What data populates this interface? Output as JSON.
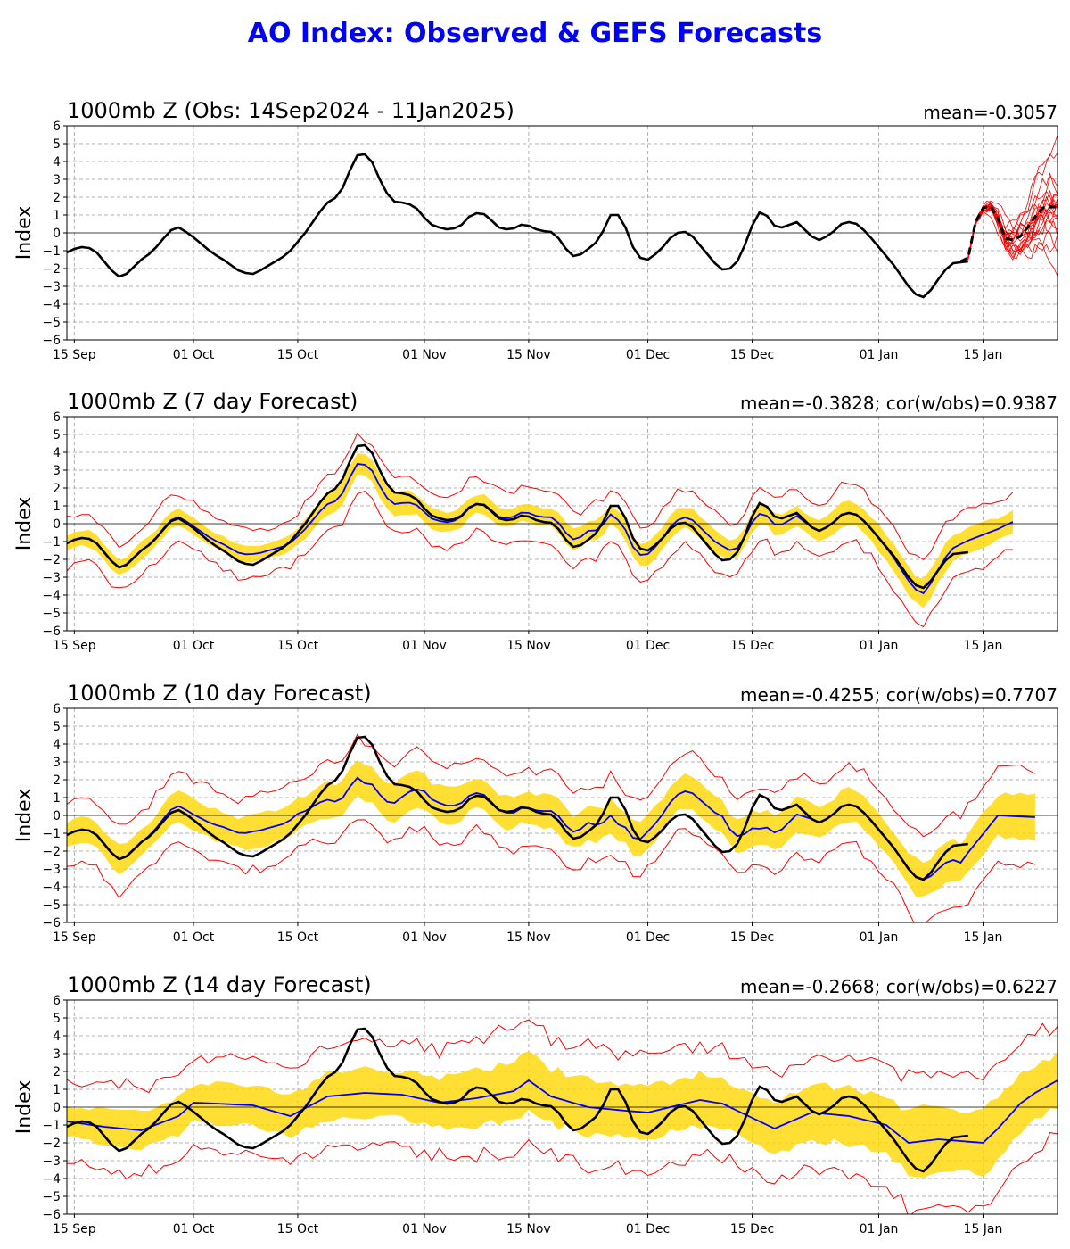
{
  "title": "AO Index: Observed & GEFS Forecasts",
  "colors": {
    "title": "#0000ff",
    "observed": "#000000",
    "ensemble_mean": "#0000ff",
    "members": "#ff0000",
    "spread": "#ffd700"
  },
  "chart_data": [
    {
      "type": "line",
      "title": "1000mb Z (Obs: 14Sep2024 - 11Jan2025)",
      "stats": "mean=-0.3057",
      "ylabel": "Index",
      "ylim": [
        -6,
        6
      ],
      "yticks": [
        "6",
        "5",
        "4",
        "3",
        "2",
        "1",
        "0",
        "−1",
        "−2",
        "−3",
        "−4",
        "−5",
        "−6"
      ],
      "xticks": [
        {
          "day": 1,
          "label": "15 Sep"
        },
        {
          "day": 17,
          "label": "01 Oct"
        },
        {
          "day": 31,
          "label": "15 Oct"
        },
        {
          "day": 48,
          "label": "01 Nov"
        },
        {
          "day": 62,
          "label": "15 Nov"
        },
        {
          "day": 78,
          "label": "01 Dec"
        },
        {
          "day": 92,
          "label": "15 Dec"
        },
        {
          "day": 109,
          "label": "01 Jan"
        },
        {
          "day": 123,
          "label": "15 Jan"
        }
      ],
      "x_start": "14Sep2024",
      "x_range_days": [
        0,
        133
      ],
      "grid": true,
      "observed_keypoints": [
        [
          0,
          -1.1
        ],
        [
          1,
          -0.9
        ],
        [
          2,
          -0.8
        ],
        [
          3,
          -0.85
        ],
        [
          4,
          -1.1
        ],
        [
          5,
          -1.6
        ],
        [
          6,
          -2.1
        ],
        [
          7,
          -2.45
        ],
        [
          8,
          -2.3
        ],
        [
          9,
          -1.9
        ],
        [
          10,
          -1.5
        ],
        [
          11,
          -1.2
        ],
        [
          12,
          -0.8
        ],
        [
          13,
          -0.3
        ],
        [
          14,
          0.15
        ],
        [
          15,
          0.3
        ],
        [
          16,
          0.05
        ],
        [
          17,
          -0.25
        ],
        [
          18,
          -0.6
        ],
        [
          19,
          -0.95
        ],
        [
          20,
          -1.25
        ],
        [
          21,
          -1.5
        ],
        [
          22,
          -1.8
        ],
        [
          23,
          -2.1
        ],
        [
          24,
          -2.25
        ],
        [
          25,
          -2.3
        ],
        [
          26,
          -2.1
        ],
        [
          27,
          -1.85
        ],
        [
          28,
          -1.6
        ],
        [
          29,
          -1.35
        ],
        [
          30,
          -1.0
        ],
        [
          31,
          -0.5
        ],
        [
          32,
          0.0
        ],
        [
          33,
          0.6
        ],
        [
          34,
          1.2
        ],
        [
          35,
          1.7
        ],
        [
          36,
          1.95
        ],
        [
          37,
          2.5
        ],
        [
          38,
          3.5
        ],
        [
          39,
          4.35
        ],
        [
          40,
          4.4
        ],
        [
          41,
          3.95
        ],
        [
          42,
          3.0
        ],
        [
          43,
          2.2
        ],
        [
          44,
          1.75
        ],
        [
          45,
          1.7
        ],
        [
          46,
          1.6
        ],
        [
          47,
          1.35
        ],
        [
          48,
          0.85
        ],
        [
          49,
          0.45
        ],
        [
          50,
          0.3
        ],
        [
          51,
          0.2
        ],
        [
          52,
          0.25
        ],
        [
          53,
          0.45
        ],
        [
          54,
          0.9
        ],
        [
          55,
          1.1
        ],
        [
          56,
          1.05
        ],
        [
          57,
          0.7
        ],
        [
          58,
          0.3
        ],
        [
          59,
          0.2
        ],
        [
          60,
          0.25
        ],
        [
          61,
          0.45
        ],
        [
          62,
          0.4
        ],
        [
          63,
          0.2
        ],
        [
          64,
          0.1
        ],
        [
          65,
          0.05
        ],
        [
          66,
          -0.3
        ],
        [
          67,
          -0.9
        ],
        [
          68,
          -1.3
        ],
        [
          69,
          -1.2
        ],
        [
          70,
          -0.9
        ],
        [
          71,
          -0.55
        ],
        [
          72,
          0.1
        ],
        [
          73,
          1.0
        ],
        [
          74,
          1.0
        ],
        [
          75,
          0.3
        ],
        [
          76,
          -0.8
        ],
        [
          77,
          -1.4
        ],
        [
          78,
          -1.5
        ],
        [
          79,
          -1.2
        ],
        [
          80,
          -0.8
        ],
        [
          81,
          -0.3
        ],
        [
          82,
          0.0
        ],
        [
          83,
          0.05
        ],
        [
          84,
          -0.2
        ],
        [
          85,
          -0.7
        ],
        [
          86,
          -1.2
        ],
        [
          87,
          -1.7
        ],
        [
          88,
          -2.05
        ],
        [
          89,
          -2.0
        ],
        [
          90,
          -1.6
        ],
        [
          91,
          -0.7
        ],
        [
          92,
          0.4
        ],
        [
          93,
          1.15
        ],
        [
          94,
          0.95
        ],
        [
          95,
          0.4
        ],
        [
          96,
          0.3
        ],
        [
          97,
          0.45
        ],
        [
          98,
          0.6
        ],
        [
          99,
          0.2
        ],
        [
          100,
          -0.2
        ],
        [
          101,
          -0.4
        ],
        [
          102,
          -0.2
        ],
        [
          103,
          0.1
        ],
        [
          104,
          0.5
        ],
        [
          105,
          0.6
        ],
        [
          106,
          0.5
        ],
        [
          107,
          0.15
        ],
        [
          108,
          -0.3
        ],
        [
          109,
          -0.8
        ],
        [
          110,
          -1.3
        ],
        [
          111,
          -1.8
        ],
        [
          112,
          -2.4
        ],
        [
          113,
          -3.0
        ],
        [
          114,
          -3.45
        ],
        [
          115,
          -3.6
        ],
        [
          116,
          -3.2
        ],
        [
          117,
          -2.6
        ],
        [
          118,
          -2.05
        ],
        [
          119,
          -1.7
        ],
        [
          120,
          -1.65
        ],
        [
          121,
          -1.6
        ]
      ],
      "forecast_keypoints": [
        [
          120,
          -1.6
        ],
        [
          121,
          -1.4
        ],
        [
          122,
          0.6
        ],
        [
          123,
          1.4
        ],
        [
          124,
          1.5
        ],
        [
          125,
          0.8
        ],
        [
          126,
          -0.3
        ],
        [
          127,
          -0.4
        ],
        [
          128,
          -0.2
        ],
        [
          129,
          0.3
        ],
        [
          130,
          0.9
        ],
        [
          131,
          1.4
        ],
        [
          132,
          1.45
        ]
      ],
      "member_spread": {
        "day_start": 121,
        "day_end": 133,
        "members": 20,
        "y_low_end": -3.5,
        "y_high_end": 4.8
      }
    },
    {
      "type": "line",
      "title": "1000mb Z (7 day Forecast)",
      "stats": "mean=-0.3828; cor(w/obs)=0.9387",
      "ylabel": "Index",
      "ylim": [
        -6,
        6
      ],
      "x_range_days": [
        0,
        133
      ],
      "grid": true,
      "forecast_end_day": 127,
      "bias_keypoints": [
        [
          0,
          0
        ],
        [
          10,
          0
        ],
        [
          17,
          0.1
        ],
        [
          25,
          0.6
        ],
        [
          31,
          -0.2
        ],
        [
          40,
          -1.1
        ],
        [
          48,
          -0.2
        ],
        [
          62,
          0.2
        ],
        [
          70,
          0.5
        ],
        [
          74,
          -0.8
        ],
        [
          78,
          -0.2
        ],
        [
          88,
          0.8
        ],
        [
          93,
          -0.6
        ],
        [
          100,
          0
        ],
        [
          109,
          0
        ],
        [
          115,
          -0.3
        ],
        [
          120,
          0.5
        ],
        [
          125,
          1.3
        ],
        [
          127,
          1.7
        ]
      ],
      "halfwidth_keypoints": [
        [
          0,
          0.45
        ],
        [
          30,
          0.45
        ],
        [
          40,
          0.65
        ],
        [
          60,
          0.5
        ],
        [
          80,
          0.6
        ],
        [
          100,
          0.55
        ],
        [
          115,
          0.8
        ],
        [
          127,
          0.6
        ]
      ],
      "member_extra_keypoints": [
        [
          0,
          1.3
        ],
        [
          60,
          1.4
        ],
        [
          100,
          1.5
        ],
        [
          127,
          1.4
        ]
      ]
    },
    {
      "type": "line",
      "title": "1000mb Z (10 day Forecast)",
      "stats": "mean=-0.4255; cor(w/obs)=0.7707",
      "ylabel": "Index",
      "ylim": [
        -6,
        6
      ],
      "x_range_days": [
        0,
        133
      ],
      "grid": true,
      "forecast_end_day": 130,
      "bias_keypoints": [
        [
          0,
          0
        ],
        [
          10,
          0
        ],
        [
          17,
          0.3
        ],
        [
          25,
          1.4
        ],
        [
          31,
          0.6
        ],
        [
          40,
          -2.6
        ],
        [
          48,
          0.5
        ],
        [
          60,
          -0.1
        ],
        [
          70,
          0.5
        ],
        [
          74,
          -1.5
        ],
        [
          78,
          0.6
        ],
        [
          88,
          2.0
        ],
        [
          93,
          -1.9
        ],
        [
          100,
          0
        ],
        [
          109,
          0
        ],
        [
          115,
          0
        ],
        [
          120,
          -1.0
        ],
        [
          125,
          1.6
        ],
        [
          130,
          1.5
        ]
      ],
      "halfwidth_keypoints": [
        [
          0,
          0.7
        ],
        [
          30,
          0.9
        ],
        [
          40,
          1.0
        ],
        [
          60,
          0.9
        ],
        [
          90,
          0.9
        ],
        [
          110,
          0.9
        ],
        [
          120,
          1.1
        ],
        [
          130,
          1.2
        ]
      ],
      "member_extra_keypoints": [
        [
          0,
          1.7
        ],
        [
          50,
          1.8
        ],
        [
          100,
          1.9
        ],
        [
          120,
          2.4
        ],
        [
          130,
          2.3
        ]
      ]
    },
    {
      "type": "line",
      "title": "1000mb Z (14 day Forecast)",
      "stats": "mean=-0.2668; cor(w/obs)=0.6227",
      "ylabel": "Index",
      "ylim": [
        -6,
        6
      ],
      "x_range_days": [
        0,
        133
      ],
      "grid": true,
      "forecast_end_day": 133,
      "blue_keypoints": [
        [
          0,
          -0.8
        ],
        [
          5,
          -1.1
        ],
        [
          10,
          -1.3
        ],
        [
          15,
          -0.5
        ],
        [
          17,
          0.25
        ],
        [
          20,
          0.2
        ],
        [
          25,
          0.1
        ],
        [
          30,
          -0.5
        ],
        [
          35,
          0.6
        ],
        [
          40,
          0.8
        ],
        [
          45,
          0.7
        ],
        [
          50,
          0.25
        ],
        [
          55,
          0.5
        ],
        [
          60,
          0.9
        ],
        [
          62,
          1.5
        ],
        [
          65,
          0.6
        ],
        [
          70,
          0.0
        ],
        [
          75,
          -0.2
        ],
        [
          78,
          -0.3
        ],
        [
          85,
          0.4
        ],
        [
          88,
          0.2
        ],
        [
          92,
          -0.6
        ],
        [
          95,
          -1.2
        ],
        [
          100,
          -0.3
        ],
        [
          105,
          -0.5
        ],
        [
          110,
          -1.0
        ],
        [
          113,
          -2.0
        ],
        [
          117,
          -1.8
        ],
        [
          120,
          -1.9
        ],
        [
          123,
          -2.0
        ],
        [
          125,
          -1.2
        ],
        [
          128,
          0.2
        ],
        [
          130,
          0.8
        ],
        [
          133,
          1.5
        ]
      ],
      "halfwidth_keypoints": [
        [
          0,
          0.9
        ],
        [
          20,
          1.1
        ],
        [
          40,
          1.3
        ],
        [
          60,
          1.6
        ],
        [
          80,
          1.4
        ],
        [
          100,
          1.5
        ],
        [
          115,
          1.8
        ],
        [
          125,
          1.8
        ],
        [
          133,
          1.5
        ]
      ],
      "member_extra_keypoints": [
        [
          0,
          2.2
        ],
        [
          40,
          2.4
        ],
        [
          62,
          3.0
        ],
        [
          100,
          2.6
        ],
        [
          125,
          3.5
        ],
        [
          133,
          2.8
        ]
      ]
    }
  ]
}
